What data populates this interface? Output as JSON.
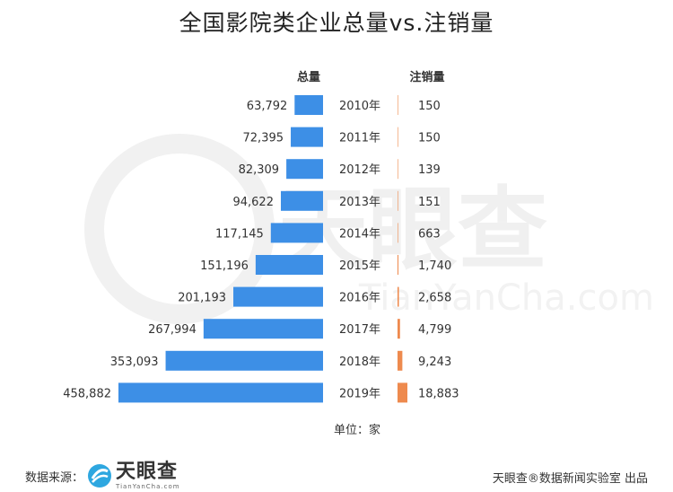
{
  "chart_data": {
    "type": "bar",
    "title": "全国影院类企业总量vs.注销量",
    "categories": [
      "2010年",
      "2011年",
      "2012年",
      "2013年",
      "2014年",
      "2015年",
      "2016年",
      "2017年",
      "2018年",
      "2019年"
    ],
    "series": [
      {
        "name": "总量",
        "values": [
          63792,
          72395,
          82309,
          94622,
          117145,
          151196,
          201193,
          267994,
          353093,
          458882
        ],
        "labels": [
          "63,792",
          "72,395",
          "82,309",
          "94,622",
          "117,145",
          "151,196",
          "201,193",
          "267,994",
          "353,093",
          "458,882"
        ],
        "color": "#3d8fe6"
      },
      {
        "name": "注销量",
        "values": [
          150,
          150,
          139,
          151,
          663,
          1740,
          2658,
          4799,
          9243,
          18883
        ],
        "labels": [
          "150",
          "150",
          "139",
          "151",
          "663",
          "1,740",
          "2,658",
          "4,799",
          "9,243",
          "18,883"
        ],
        "color": "#ee8a4e"
      }
    ],
    "orientation": "horizontal-butterfly",
    "grid": false,
    "unit_label": "单位：家"
  },
  "footer": {
    "source_label": "数据来源：",
    "logo_name": "天眼查",
    "logo_domain": "TianYanCha.com",
    "credit": "天眼查®数据新闻实验室 出品"
  },
  "watermark": {
    "text": "天眼查",
    "domain": "TianYanCha.com",
    "color": "#eeeeee"
  }
}
